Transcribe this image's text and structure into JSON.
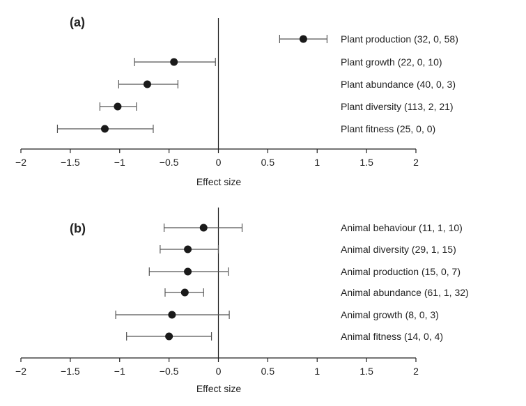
{
  "colors": {
    "axis": "#222222",
    "point": "#1a1a1a",
    "whisker": "#555555"
  },
  "chart_data": [
    {
      "type": "scatter",
      "panel_label": "(a)",
      "xlabel": "Effect size",
      "ylabel": "",
      "xlim": [
        -2,
        2
      ],
      "xticks": [
        "−2",
        "−1.5",
        "−1",
        "−0.5",
        "0",
        "0.5",
        "1",
        "1.5",
        "2"
      ],
      "xtick_values": [
        -2,
        -1.5,
        -1,
        -0.5,
        0,
        0.5,
        1,
        1.5,
        2
      ],
      "grid": false,
      "rows": [
        {
          "label": "Plant production (32, 0, 58)",
          "estimate": 0.86,
          "lower": 0.62,
          "upper": 1.1
        },
        {
          "label": "Plant growth (22, 0, 10)",
          "estimate": -0.45,
          "lower": -0.85,
          "upper": -0.03
        },
        {
          "label": "Plant abundance (40, 0, 3)",
          "estimate": -0.72,
          "lower": -1.01,
          "upper": -0.41
        },
        {
          "label": "Plant diversity (113, 2, 21)",
          "estimate": -1.02,
          "lower": -1.2,
          "upper": -0.83
        },
        {
          "label": "Plant fitness (25, 0, 0)",
          "estimate": -1.15,
          "lower": -1.63,
          "upper": -0.66
        }
      ]
    },
    {
      "type": "scatter",
      "panel_label": "(b)",
      "xlabel": "Effect size",
      "ylabel": "",
      "xlim": [
        -2,
        2
      ],
      "xticks": [
        "−2",
        "−1.5",
        "−1",
        "−0.5",
        "0",
        "0.5",
        "1",
        "1.5",
        "2"
      ],
      "xtick_values": [
        -2,
        -1.5,
        -1,
        -0.5,
        0,
        0.5,
        1,
        1.5,
        2
      ],
      "grid": false,
      "rows": [
        {
          "label": "Animal behaviour (11, 1, 10)",
          "estimate": -0.15,
          "lower": -0.55,
          "upper": 0.24
        },
        {
          "label": "Animal diversity (29, 1, 15)",
          "estimate": -0.31,
          "lower": -0.59,
          "upper": 0.0
        },
        {
          "label": "Animal production (15, 0, 7)",
          "estimate": -0.31,
          "lower": -0.7,
          "upper": 0.1
        },
        {
          "label": "Animal abundance (61, 1, 32)",
          "estimate": -0.34,
          "lower": -0.54,
          "upper": -0.15
        },
        {
          "label": "Animal growth (8, 0, 3)",
          "estimate": -0.47,
          "lower": -1.04,
          "upper": 0.11
        },
        {
          "label": "Animal fitness (14, 0, 4)",
          "estimate": -0.5,
          "lower": -0.93,
          "upper": -0.07
        }
      ]
    }
  ]
}
